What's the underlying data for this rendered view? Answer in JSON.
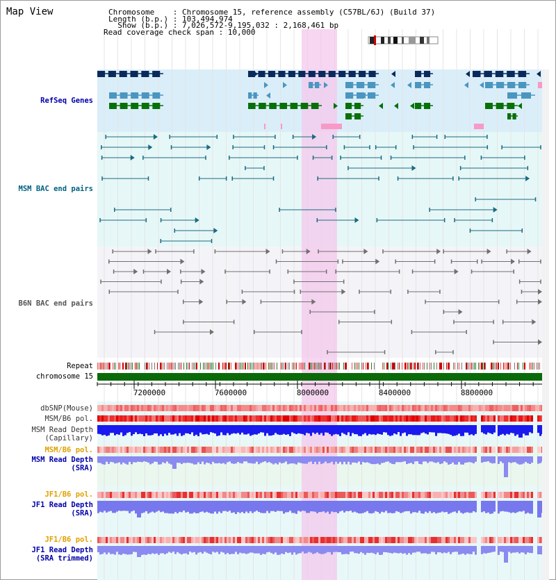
{
  "title": "Map View",
  "info": {
    "chromosome_line": "Chromosome    : Chromosome 15, reference assembly (C57BL/6J) (Build 37)",
    "length_line": "Length (b.p.) : 103,494,974",
    "show_line": "  Show (b.p.) : 7,026,572-9,195,032 : 2,168,461 bp",
    "coverage_line": "Read coverage check span : 10,000"
  },
  "tracks": {
    "refseq": "RefSeq Genes",
    "msm_bac": "MSM BAC end pairs",
    "b6n_bac": "B6N BAC end pairs",
    "repeat": "Repeat",
    "chromosome": "chromosome 15",
    "dbsnp": "dbSNP(Mouse)",
    "msm_pol_cap": "MSM/B6 pol.",
    "msm_depth_cap": "MSM Read Depth\n(Capillary)",
    "msm_pol_sra": "MSM/B6 pol.",
    "msm_depth_sra": "MSM Read Depth\n(SRA)",
    "jf1_pol": "JF1/B6 pol.",
    "jf1_depth": "JF1 Read Depth\n(SRA)",
    "jf1_pol_trim": "JF1/B6 pol.",
    "jf1_depth_trim": "JF1 Read Depth\n(SRA trimmed)"
  },
  "axis": {
    "ticks": [
      "7200000",
      "7600000",
      "8000000",
      "8400000",
      "8800000"
    ]
  },
  "colors": {
    "refseq_bg": "#daeef9",
    "msm_bg": "#e6f7f7",
    "highlight": "#f7d8ef",
    "navy_gene": "#0a2a5c",
    "blue_gene": "#4a96c0",
    "green_gene": "#087008",
    "teal_pair": "#1a6a80",
    "gray_pair": "#707070",
    "chromosome_bar": "#0a6a0a"
  }
}
